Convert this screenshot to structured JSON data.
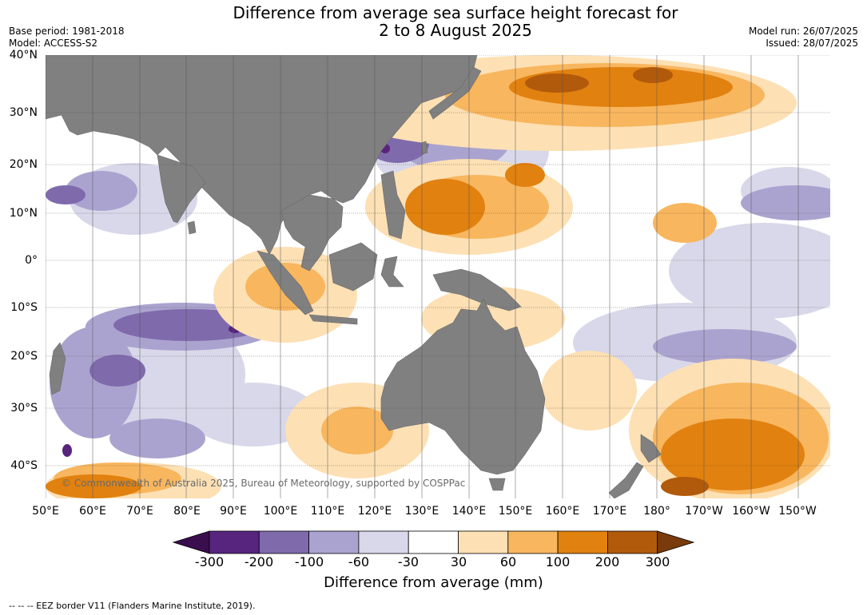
{
  "title_line1": "Difference from average sea surface height forecast for",
  "title_line2": "2 to 8 August 2025",
  "base_period": "Base period: 1981-2018",
  "model": "Model: ACCESS-S2",
  "model_run": "Model run: 26/07/2025",
  "issued": "Issued: 28/07/2025",
  "lat_labels": [
    "40°N",
    "30°N",
    "20°N",
    "10°N",
    "0°",
    "10°S",
    "20°S",
    "30°S",
    "40°S"
  ],
  "lon_labels": [
    "50°E",
    "60°E",
    "70°E",
    "80°E",
    "90°E",
    "100°E",
    "110°E",
    "120°E",
    "130°E",
    "140°E",
    "150°E",
    "160°E",
    "170°E",
    "180°",
    "170°W",
    "160°W",
    "150°W"
  ],
  "copyright": "© Commonwealth of Australia 2025, Bureau of Meteorology, supported by COSPPac",
  "colorbar": {
    "ticks": [
      "-300",
      "-200",
      "-100",
      "-60",
      "-30",
      "30",
      "60",
      "100",
      "200",
      "300"
    ],
    "colors": [
      "#3a0d4f",
      "#57247e",
      "#7f6aac",
      "#aba3cf",
      "#d8d8ea",
      "#ffffff",
      "#fde0b4",
      "#f8b65e",
      "#e1810f",
      "#b25a0b",
      "#7a3a0b"
    ],
    "title": "Difference from average (mm)"
  },
  "footnote": "--  --  -- EEZ border V11 (Flanders Marine Institute, 2019).",
  "map_colors": {
    "land": "#808080",
    "grid": "#555555"
  }
}
